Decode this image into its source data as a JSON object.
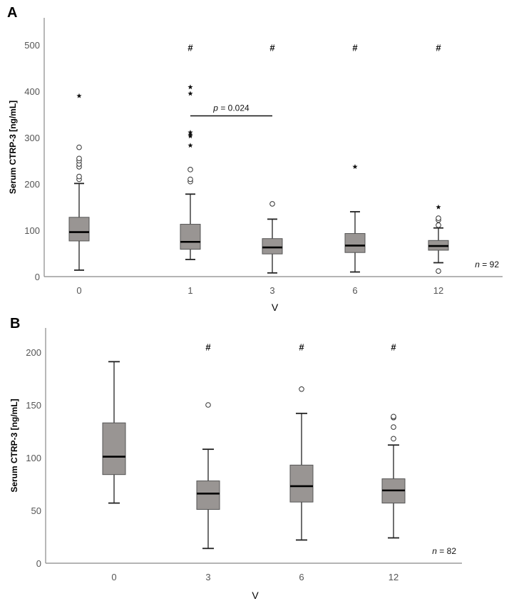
{
  "chart_data": [
    {
      "type": "box",
      "panel_label": "A",
      "ylabel": "Serum CTRP-3 [ng/mL]",
      "xlabel": "V",
      "ylim": [
        0,
        550
      ],
      "yticks": [
        0,
        100,
        200,
        300,
        400,
        500
      ],
      "categories": [
        "0",
        "1",
        "3",
        "6",
        "12"
      ],
      "box_color": "#999593",
      "boxes": [
        {
          "category": "0",
          "whisker_low": 14,
          "q1": 77,
          "median": 96,
          "q3": 128,
          "whisker_high": 201,
          "outliers_circle": [
            210,
            216,
            237,
            243,
            250,
            255,
            279
          ],
          "outliers_star": [
            390
          ],
          "annotation": ""
        },
        {
          "category": "1",
          "whisker_low": 37,
          "q1": 59,
          "median": 75,
          "q3": 113,
          "whisker_high": 178,
          "outliers_circle": [
            205,
            210,
            231
          ],
          "outliers_star": [
            283,
            303,
            306,
            311,
            395,
            409
          ],
          "annotation": "#"
        },
        {
          "category": "3",
          "whisker_low": 8,
          "q1": 49,
          "median": 63,
          "q3": 82,
          "whisker_high": 124,
          "outliers_circle": [
            157
          ],
          "outliers_star": [],
          "annotation": "#"
        },
        {
          "category": "6",
          "whisker_low": 10,
          "q1": 52,
          "median": 67,
          "q3": 93,
          "whisker_high": 140,
          "outliers_circle": [],
          "outliers_star": [
            237
          ],
          "annotation": "#"
        },
        {
          "category": "12",
          "whisker_low": 30,
          "q1": 57,
          "median": 66,
          "q3": 78,
          "whisker_high": 105,
          "outliers_circle": [
            12,
            111,
            122,
            126
          ],
          "outliers_star": [
            150
          ],
          "annotation": "#"
        }
      ],
      "annotation_y": 495,
      "comparison": {
        "from": "1",
        "to": "3",
        "y": 347,
        "label_italic": "p",
        "label_rest": " = 0.024"
      },
      "n_label_italic": "n",
      "n_label_rest": " = 92"
    },
    {
      "type": "box",
      "panel_label": "B",
      "ylabel": "Serum CTRP-3 [ng/mL]",
      "xlabel": "V",
      "ylim": [
        0,
        222
      ],
      "yticks": [
        0,
        50,
        100,
        150,
        200
      ],
      "categories": [
        "0",
        "3",
        "6",
        "12"
      ],
      "box_color": "#999593",
      "boxes": [
        {
          "category": "0",
          "whisker_low": 57,
          "q1": 84,
          "median": 101,
          "q3": 133,
          "whisker_high": 191,
          "outliers_circle": [],
          "outliers_star": [],
          "annotation": ""
        },
        {
          "category": "3",
          "whisker_low": 14,
          "q1": 51,
          "median": 66,
          "q3": 78,
          "whisker_high": 108,
          "outliers_circle": [
            150
          ],
          "outliers_star": [],
          "annotation": "#"
        },
        {
          "category": "6",
          "whisker_low": 22,
          "q1": 58,
          "median": 73,
          "q3": 93,
          "whisker_high": 142,
          "outliers_circle": [
            165
          ],
          "outliers_star": [],
          "annotation": "#"
        },
        {
          "category": "12",
          "whisker_low": 24,
          "q1": 57,
          "median": 69,
          "q3": 80,
          "whisker_high": 112,
          "outliers_circle": [
            118,
            129,
            138,
            139
          ],
          "outliers_star": [],
          "annotation": "#"
        }
      ],
      "annotation_y": 205,
      "n_label_italic": "n",
      "n_label_rest": " = 82"
    }
  ]
}
